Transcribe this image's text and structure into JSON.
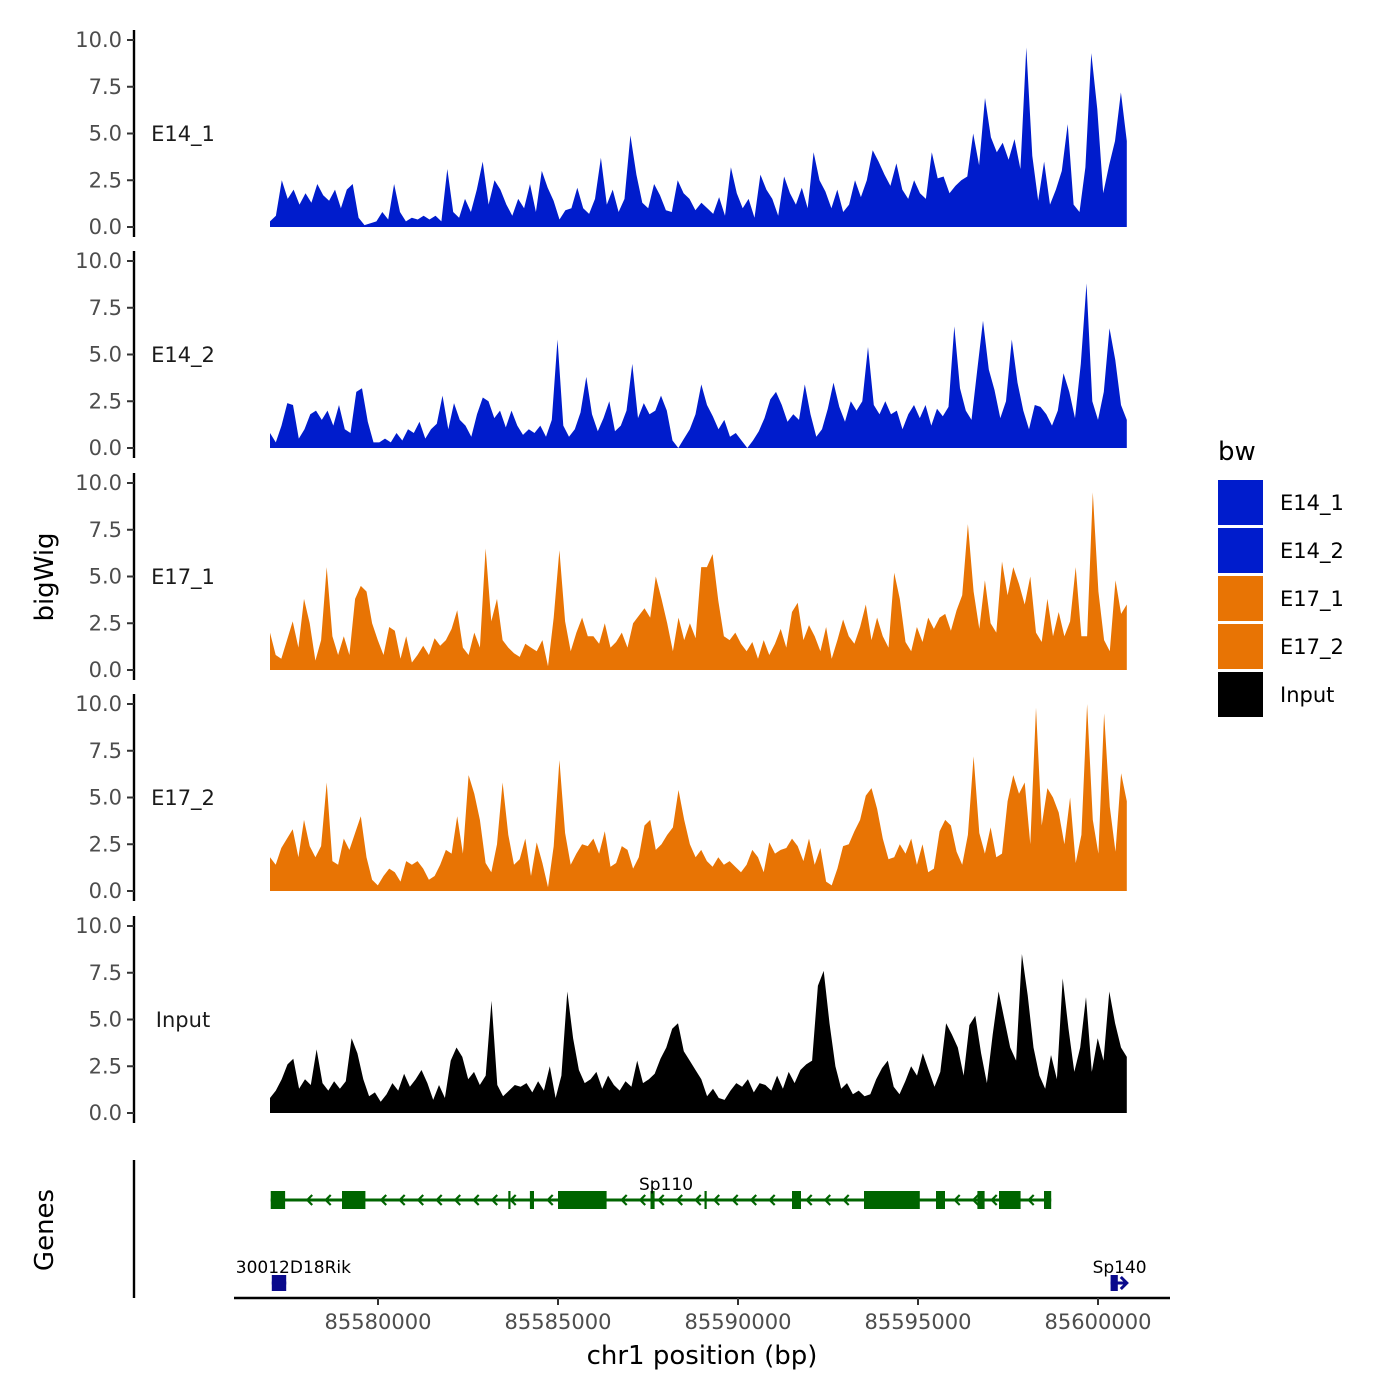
{
  "chart_data": {
    "type": "area",
    "title": "",
    "ylabel": "bigWig",
    "genes_label": "Genes",
    "xlabel": "chr1 position (bp)",
    "xlim": [
      85576000,
      85602000
    ],
    "data_range": [
      85577000,
      85600800
    ],
    "ylim": [
      0,
      10
    ],
    "yticks": [
      "0.0",
      "2.5",
      "5.0",
      "7.5",
      "10.0"
    ],
    "xticks": [
      {
        "value": 85580000,
        "label": "85580000"
      },
      {
        "value": 85585000,
        "label": "85585000"
      },
      {
        "value": 85590000,
        "label": "85590000"
      },
      {
        "value": 85595000,
        "label": "85595000"
      },
      {
        "value": 85600000,
        "label": "85600000"
      }
    ],
    "legend": {
      "title": "bw",
      "position": "right",
      "entries": [
        {
          "label": "E14_1",
          "color": "#001ccc"
        },
        {
          "label": "E14_2",
          "color": "#001ccc"
        },
        {
          "label": "E17_1",
          "color": "#e87404"
        },
        {
          "label": "E17_2",
          "color": "#e87404"
        },
        {
          "label": "Input",
          "color": "#000000"
        }
      ]
    },
    "series": [
      {
        "name": "E14_1",
        "color": "#001ccc",
        "values": [
          0.3,
          0.6,
          2.5,
          1.5,
          2.0,
          1.2,
          1.8,
          1.3,
          2.3,
          1.7,
          1.4,
          2.0,
          1.0,
          2.0,
          2.3,
          0.5,
          0.1,
          0.2,
          0.3,
          0.8,
          0.4,
          2.3,
          0.8,
          0.3,
          0.5,
          0.4,
          0.6,
          0.4,
          0.6,
          0.3,
          3.1,
          0.8,
          0.5,
          1.5,
          0.8,
          2.0,
          3.5,
          1.2,
          2.5,
          2.0,
          1.2,
          0.6,
          1.5,
          1.0,
          2.3,
          0.8,
          3.0,
          2.1,
          1.4,
          0.4,
          0.9,
          1.0,
          2.1,
          1.0,
          0.7,
          1.5,
          3.7,
          1.2,
          2.0,
          0.8,
          1.5,
          4.9,
          2.8,
          1.3,
          1.0,
          2.3,
          1.7,
          0.9,
          0.8,
          2.5,
          1.8,
          1.5,
          0.9,
          1.3,
          1.0,
          0.7,
          1.6,
          0.6,
          3.2,
          1.8,
          1.0,
          1.5,
          0.5,
          2.8,
          2.0,
          1.5,
          0.6,
          2.7,
          1.8,
          1.2,
          2.1,
          1.0,
          4.0,
          2.5,
          1.9,
          1.0,
          2.0,
          0.8,
          1.2,
          2.5,
          1.6,
          2.5,
          4.1,
          3.5,
          2.8,
          2.2,
          3.4,
          2.0,
          1.5,
          2.5,
          1.8,
          1.5,
          4.0,
          2.6,
          2.7,
          1.8,
          2.2,
          2.5,
          2.7,
          5.0,
          3.3,
          6.9,
          4.8,
          4.0,
          4.5,
          3.6,
          4.7,
          3.1,
          9.6,
          3.8,
          1.4,
          3.5,
          1.2,
          2.0,
          3.0,
          5.5,
          1.2,
          0.8,
          3.2,
          9.3,
          6.3,
          1.8,
          3.3,
          4.6,
          7.2,
          4.6
        ]
      },
      {
        "name": "E14_2",
        "color": "#001ccc",
        "values": [
          0.8,
          0.3,
          1.2,
          2.4,
          2.3,
          0.5,
          1.0,
          1.8,
          2.0,
          1.5,
          2.0,
          1.2,
          2.3,
          1.0,
          0.8,
          3.0,
          3.2,
          1.4,
          0.3,
          0.3,
          0.5,
          0.3,
          0.8,
          0.4,
          1.0,
          0.8,
          1.4,
          0.5,
          1.0,
          1.3,
          2.8,
          1.0,
          2.4,
          1.5,
          1.2,
          0.6,
          1.8,
          2.7,
          2.5,
          1.6,
          2.0,
          1.1,
          2.0,
          1.2,
          0.7,
          1.0,
          0.8,
          1.2,
          0.6,
          1.5,
          5.8,
          1.2,
          0.6,
          1.0,
          1.9,
          3.8,
          1.8,
          0.9,
          1.6,
          2.5,
          0.9,
          1.2,
          2.0,
          4.5,
          1.6,
          2.4,
          1.8,
          2.0,
          2.8,
          2.0,
          0.4,
          0.0,
          0.5,
          1.0,
          1.8,
          3.4,
          2.3,
          1.7,
          1.0,
          1.5,
          0.6,
          0.8,
          0.4,
          0.0,
          0.4,
          0.9,
          1.6,
          2.6,
          3.0,
          2.3,
          1.4,
          1.8,
          1.5,
          3.4,
          1.8,
          0.6,
          1.0,
          2.1,
          3.5,
          2.2,
          1.4,
          2.5,
          2.0,
          2.5,
          5.4,
          2.3,
          1.8,
          2.5,
          1.8,
          2.0,
          1.0,
          1.8,
          2.3,
          1.6,
          2.3,
          1.2,
          2.1,
          1.7,
          2.2,
          6.5,
          3.2,
          2.0,
          1.5,
          4.2,
          6.8,
          4.2,
          3.1,
          1.6,
          2.5,
          5.8,
          3.5,
          2.0,
          1.0,
          2.3,
          2.2,
          1.8,
          1.2,
          2.0,
          4.0,
          3.0,
          1.6,
          4.5,
          8.8,
          2.5,
          1.5,
          3.0,
          6.4,
          4.7,
          2.3,
          1.5
        ]
      },
      {
        "name": "E17_1",
        "color": "#e87404",
        "values": [
          2.0,
          0.8,
          0.6,
          1.6,
          2.6,
          1.2,
          3.8,
          2.5,
          0.5,
          1.6,
          5.5,
          1.8,
          0.8,
          1.8,
          0.8,
          3.8,
          4.5,
          4.2,
          2.5,
          1.6,
          0.8,
          2.3,
          2.1,
          0.6,
          1.8,
          0.4,
          0.8,
          1.3,
          0.8,
          1.7,
          1.3,
          1.6,
          2.2,
          3.2,
          1.2,
          0.8,
          2.0,
          1.2,
          6.5,
          2.6,
          3.8,
          1.6,
          1.2,
          0.9,
          0.7,
          1.4,
          1.2,
          1.0,
          1.6,
          0.2,
          2.8,
          6.4,
          2.6,
          1.0,
          2.0,
          2.8,
          1.8,
          1.8,
          1.4,
          2.5,
          1.2,
          1.5,
          2.0,
          1.2,
          2.5,
          2.9,
          3.3,
          2.8,
          5.0,
          3.8,
          2.5,
          1.0,
          2.8,
          1.6,
          2.5,
          1.7,
          5.5,
          5.5,
          6.2,
          3.7,
          1.8,
          1.6,
          2.0,
          1.4,
          1.0,
          1.5,
          0.6,
          1.6,
          0.8,
          1.4,
          2.2,
          1.2,
          3.1,
          3.6,
          1.6,
          2.4,
          1.8,
          1.0,
          2.3,
          0.6,
          1.6,
          2.7,
          1.8,
          1.4,
          2.3,
          3.5,
          1.6,
          2.8,
          1.8,
          1.2,
          5.2,
          3.8,
          1.5,
          1.0,
          2.3,
          1.5,
          2.8,
          2.2,
          2.8,
          3.0,
          2.1,
          3.2,
          4.0,
          7.8,
          4.2,
          2.2,
          4.8,
          2.5,
          2.0,
          5.8,
          4.0,
          5.5,
          4.6,
          3.5,
          5.0,
          2.0,
          1.5,
          3.8,
          1.8,
          3.1,
          1.8,
          2.6,
          5.5,
          1.8,
          1.8,
          9.5,
          4.2,
          1.6,
          1.0,
          4.8,
          3.0,
          3.5
        ]
      },
      {
        "name": "E17_2",
        "color": "#e87404",
        "values": [
          1.8,
          1.4,
          2.3,
          2.8,
          3.3,
          1.8,
          3.8,
          2.4,
          1.8,
          2.4,
          5.8,
          1.6,
          1.4,
          2.8,
          2.2,
          3.1,
          4.0,
          1.8,
          0.6,
          0.3,
          0.8,
          1.2,
          1.0,
          0.5,
          1.6,
          1.4,
          1.6,
          1.2,
          0.6,
          0.8,
          1.4,
          2.2,
          2.0,
          4.0,
          2.0,
          6.2,
          5.2,
          3.8,
          1.5,
          1.0,
          2.5,
          5.8,
          3.0,
          1.4,
          1.7,
          2.8,
          0.8,
          2.6,
          1.5,
          0.2,
          2.4,
          7.0,
          3.1,
          1.4,
          2.0,
          2.5,
          2.4,
          2.8,
          2.0,
          3.2,
          1.3,
          1.5,
          2.4,
          2.2,
          1.2,
          1.8,
          3.5,
          3.8,
          2.2,
          2.5,
          3.0,
          3.4,
          5.4,
          3.8,
          2.5,
          1.8,
          2.2,
          1.6,
          1.3,
          1.8,
          1.4,
          1.6,
          1.3,
          1.0,
          1.4,
          2.2,
          1.8,
          1.0,
          2.6,
          2.0,
          2.2,
          2.3,
          2.8,
          2.4,
          1.6,
          2.8,
          1.4,
          2.3,
          0.5,
          0.3,
          1.2,
          2.4,
          2.5,
          3.2,
          3.8,
          5.1,
          5.5,
          4.4,
          2.8,
          1.7,
          1.8,
          2.5,
          2.0,
          2.8,
          1.4,
          2.5,
          1.0,
          1.2,
          3.2,
          3.8,
          3.5,
          2.1,
          1.4,
          3.0,
          7.2,
          3.1,
          2.0,
          3.4,
          1.8,
          2.0,
          4.8,
          6.2,
          5.2,
          5.8,
          2.5,
          9.8,
          3.5,
          5.5,
          5.0,
          4.2,
          2.5,
          5.0,
          1.5,
          3.0,
          10.0,
          3.8,
          2.0,
          9.5,
          4.5,
          2.1,
          6.3,
          4.8
        ]
      },
      {
        "name": "Input",
        "color": "#000000",
        "values": [
          0.8,
          1.2,
          1.8,
          2.6,
          2.9,
          1.3,
          1.8,
          1.5,
          3.4,
          1.6,
          1.2,
          1.7,
          1.3,
          1.7,
          4.0,
          3.2,
          1.8,
          0.9,
          1.1,
          0.6,
          1.0,
          1.6,
          1.2,
          2.1,
          1.4,
          1.8,
          2.3,
          1.6,
          0.7,
          1.5,
          0.8,
          2.8,
          3.5,
          3.0,
          1.8,
          2.2,
          1.5,
          2.0,
          6.0,
          1.5,
          0.9,
          1.2,
          1.5,
          1.4,
          1.6,
          1.1,
          1.7,
          1.2,
          2.5,
          0.8,
          2.0,
          6.5,
          4.0,
          2.3,
          1.6,
          1.8,
          2.2,
          1.3,
          2.0,
          1.5,
          1.2,
          1.7,
          1.4,
          2.8,
          1.6,
          1.8,
          2.1,
          2.9,
          3.5,
          4.5,
          4.8,
          3.3,
          2.8,
          2.3,
          1.8,
          0.9,
          1.3,
          0.8,
          0.7,
          1.2,
          1.6,
          1.4,
          1.8,
          1.1,
          1.6,
          1.5,
          1.2,
          2.0,
          1.3,
          2.2,
          1.6,
          2.3,
          2.6,
          2.8,
          6.8,
          7.6,
          4.8,
          2.5,
          1.3,
          1.6,
          1.0,
          1.2,
          0.9,
          1.0,
          1.8,
          2.4,
          2.8,
          1.4,
          1.0,
          1.7,
          2.5,
          2.0,
          3.2,
          2.3,
          1.4,
          2.2,
          4.8,
          4.2,
          3.5,
          2.0,
          4.7,
          5.2,
          3.2,
          1.6,
          4.2,
          6.5,
          5.0,
          3.5,
          2.8,
          8.5,
          6.3,
          3.5,
          2.0,
          1.3,
          3.1,
          1.8,
          7.2,
          4.5,
          2.2,
          3.5,
          6.2,
          2.2,
          4.0,
          2.8,
          6.5,
          4.8,
          3.5,
          3.0
        ]
      }
    ],
    "genes": [
      {
        "name": "Sp110",
        "color": "#006400",
        "strand": "-",
        "start": 85577020,
        "end": 85598700,
        "label_pos": 85588000,
        "exons": [
          [
            85577020,
            85577420
          ],
          [
            85579000,
            85579650
          ],
          [
            85584250,
            85584300
          ],
          [
            85585000,
            85586350
          ],
          [
            85587600,
            85587640
          ],
          [
            85591500,
            85591750
          ],
          [
            85593500,
            85595050
          ],
          [
            85595500,
            85595750
          ],
          [
            85596650,
            85596850
          ],
          [
            85597250,
            85597850
          ],
          [
            85598500,
            85598700
          ]
        ],
        "ticks": [
          85583650,
          85584250,
          85587600,
          85589100
        ]
      },
      {
        "name": "30012D18Rik",
        "color": "#0a0a8c",
        "strand": "-",
        "start": 85577050,
        "end": 85577450,
        "label_pos": 85577650,
        "exons": [
          [
            85577050,
            85577450
          ]
        ],
        "ticks": []
      },
      {
        "name": "Sp140",
        "color": "#0a0a8c",
        "strand": "+",
        "start": 85600350,
        "end": 85600800,
        "label_pos": 85600600,
        "exons": [
          [
            85600350,
            85600550
          ]
        ],
        "ticks": []
      }
    ]
  }
}
